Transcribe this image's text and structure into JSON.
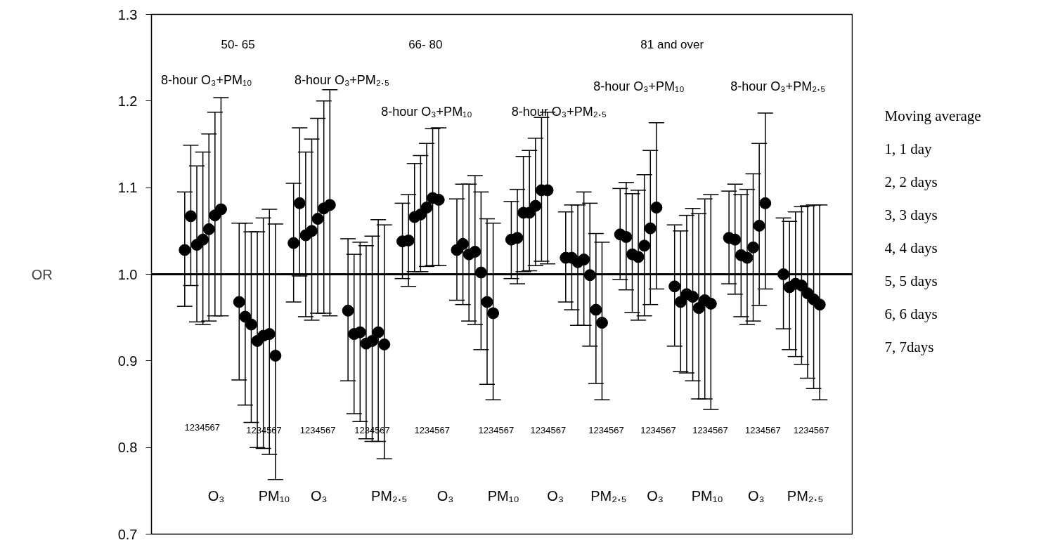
{
  "chart_data": {
    "type": "scatter",
    "ylabel": "OR",
    "marker": "circle",
    "grid": false,
    "tick_labels": "y",
    "categories": [
      null,
      null,
      null,
      null,
      null,
      null,
      null,
      null,
      null,
      null,
      null,
      null,
      null,
      null,
      null,
      null,
      null,
      null,
      null,
      null,
      null,
      null,
      null,
      null,
      null,
      null,
      null,
      null,
      null,
      null,
      null,
      null,
      null,
      null,
      null,
      null,
      null,
      null,
      null,
      null,
      null,
      null,
      null,
      null,
      null,
      null,
      null,
      null,
      null,
      null,
      null,
      null,
      null,
      null,
      null,
      null,
      null,
      null,
      null,
      null,
      null,
      null,
      null,
      null,
      null,
      null,
      null,
      null,
      null,
      null,
      null,
      null,
      null,
      null,
      null,
      null,
      null,
      null,
      null,
      null,
      null,
      null,
      null,
      null,
      null,
      null,
      null,
      null,
      null,
      null,
      null,
      null,
      null,
      null,
      null,
      null,
      null,
      null,
      null,
      null,
      null,
      null,
      null,
      null,
      null,
      null,
      null,
      null,
      null,
      null,
      null,
      null,
      null,
      null,
      null,
      null
    ],
    "ylim": [
      0.7,
      1.3
    ],
    "yticks": [
      {
        "value": 0.7,
        "label": "0.7"
      },
      {
        "value": 0.8,
        "label": "0.8"
      },
      {
        "value": 0.9,
        "label": "0.9"
      },
      {
        "value": 1.0,
        "label": "1.0"
      },
      {
        "value": 1.1,
        "label": "1.1"
      },
      {
        "value": 1.2,
        "label": "1.2"
      },
      {
        "value": 1.3,
        "label": "1.3"
      }
    ],
    "ref_lines": [
      {
        "axis": "y",
        "value": 1.0,
        "color": "#000000"
      }
    ],
    "series": [
      {
        "color": "#000000",
        "values": [
          null,
          null,
          null,
          null,
          null,
          1.028,
          1.067,
          1.034,
          1.04,
          1.052,
          1.068,
          1.075,
          null,
          null,
          0.968,
          0.951,
          0.942,
          0.923,
          0.929,
          0.931,
          0.906,
          null,
          null,
          1.036,
          1.082,
          1.045,
          1.05,
          1.064,
          1.076,
          1.08,
          null,
          null,
          0.958,
          0.931,
          0.933,
          0.92,
          0.923,
          0.933,
          0.919,
          null,
          null,
          1.038,
          1.039,
          1.066,
          1.069,
          1.077,
          1.088,
          1.086,
          null,
          null,
          1.028,
          1.035,
          1.023,
          1.026,
          1.002,
          0.968,
          0.955,
          null,
          null,
          1.04,
          1.042,
          1.071,
          1.071,
          1.079,
          1.097,
          1.097,
          null,
          null,
          1.019,
          1.019,
          1.014,
          1.017,
          0.999,
          0.959,
          0.944,
          null,
          null,
          1.046,
          1.043,
          1.023,
          1.02,
          1.033,
          1.053,
          1.077,
          null,
          null,
          0.986,
          0.968,
          0.977,
          0.974,
          0.961,
          0.97,
          0.966,
          null,
          null,
          1.042,
          1.04,
          1.022,
          1.019,
          1.031,
          1.056,
          1.082,
          null,
          null,
          1.0,
          0.985,
          0.989,
          0.987,
          0.978,
          0.971,
          0.965,
          null,
          null,
          null,
          null,
          null
        ],
        "errors": [
          null,
          null,
          null,
          null,
          null,
          [
            0.963,
            1.095
          ],
          [
            0.987,
            1.149
          ],
          [
            0.945,
            1.125
          ],
          [
            0.942,
            1.141
          ],
          [
            0.946,
            1.162
          ],
          [
            0.952,
            1.187
          ],
          [
            0.952,
            1.204
          ],
          null,
          null,
          [
            0.878,
            1.059
          ],
          [
            0.849,
            1.059
          ],
          [
            0.829,
            1.049
          ],
          [
            0.8,
            1.049
          ],
          [
            0.799,
            1.065
          ],
          [
            0.792,
            1.075
          ],
          [
            0.763,
            1.058
          ],
          null,
          null,
          [
            0.968,
            1.105
          ],
          [
            0.998,
            1.169
          ],
          [
            0.951,
            1.141
          ],
          [
            0.947,
            1.156
          ],
          [
            0.955,
            1.18
          ],
          [
            0.955,
            1.2
          ],
          [
            0.952,
            1.213
          ],
          null,
          null,
          [
            0.877,
            1.041
          ],
          [
            0.839,
            1.023
          ],
          [
            0.83,
            1.037
          ],
          [
            0.81,
            1.033
          ],
          [
            0.807,
            1.044
          ],
          [
            0.807,
            1.063
          ],
          [
            0.787,
            1.057
          ],
          null,
          null,
          [
            0.995,
            1.082
          ],
          [
            0.986,
            1.092
          ],
          [
            1.003,
            1.128
          ],
          [
            1.003,
            1.137
          ],
          [
            1.009,
            1.151
          ],
          [
            1.01,
            1.168
          ],
          [
            1.01,
            1.169
          ],
          null,
          null,
          [
            0.97,
            1.087
          ],
          [
            0.965,
            1.104
          ],
          [
            0.946,
            1.104
          ],
          [
            0.942,
            1.114
          ],
          [
            0.913,
            1.095
          ],
          [
            0.873,
            1.064
          ],
          [
            0.855,
            1.059
          ],
          null,
          null,
          [
            0.995,
            1.084
          ],
          [
            0.989,
            1.098
          ],
          [
            1.003,
            1.136
          ],
          [
            1.004,
            1.143
          ],
          [
            1.01,
            1.157
          ],
          [
            1.015,
            1.181
          ],
          [
            1.012,
            1.187
          ],
          null,
          null,
          [
            0.968,
            1.072
          ],
          [
            0.959,
            1.08
          ],
          [
            0.941,
            1.08
          ],
          [
            0.941,
            1.095
          ],
          [
            0.917,
            1.082
          ],
          [
            0.874,
            1.047
          ],
          [
            0.855,
            1.037
          ],
          null,
          null,
          [
            0.994,
            1.099
          ],
          [
            0.982,
            1.106
          ],
          [
            0.956,
            1.093
          ],
          [
            0.947,
            1.097
          ],
          [
            0.952,
            1.115
          ],
          [
            0.965,
            1.143
          ],
          [
            0.983,
            1.175
          ],
          null,
          null,
          [
            0.917,
            1.057
          ],
          [
            0.888,
            1.05
          ],
          [
            0.886,
            1.068
          ],
          [
            0.877,
            1.076
          ],
          [
            0.856,
            1.07
          ],
          [
            0.856,
            1.087
          ],
          [
            0.844,
            1.092
          ],
          null,
          null,
          [
            0.989,
            1.096
          ],
          [
            0.977,
            1.104
          ],
          [
            0.951,
            1.092
          ],
          [
            0.942,
            1.098
          ],
          [
            0.946,
            1.116
          ],
          [
            0.964,
            1.151
          ],
          [
            0.983,
            1.186
          ],
          null,
          null,
          [
            0.937,
            1.065
          ],
          [
            0.913,
            1.061
          ],
          [
            0.905,
            1.072
          ],
          [
            0.896,
            1.078
          ],
          [
            0.88,
            1.079
          ],
          [
            0.868,
            1.08
          ],
          [
            0.855,
            1.08
          ],
          null,
          null,
          null,
          null,
          null
        ]
      }
    ],
    "annotations": [
      "50- 65",
      "66- 80",
      "81 and over",
      "8-hour O₃+PM₁₀",
      "8-hour O₃+PM₂.₅",
      "8-hour O₃+PM₁₀",
      "8-hour O₃+PM₂.₅",
      "8-hour O₃+PM₁₀",
      "8-hour O₃+PM₂.₅",
      "1234567",
      "1234567",
      "1234567",
      "1234567",
      "1234567",
      "1234567",
      "1234567",
      "1234567",
      "1234567",
      "1234567",
      "1234567",
      "1234567",
      "O₃",
      "PM₁₀",
      "O₃",
      "PM₂.₅",
      "O₃",
      "PM₁₀",
      "O₃",
      "PM₂.₅",
      "O₃",
      "PM₁₀",
      "O₃",
      "PM₂.₅",
      "Moving average",
      "1, 1 day",
      "2, 2 days",
      "3, 3 days",
      "4, 4 days",
      "5, 5 days",
      "6, 6 days",
      "7, 7days"
    ]
  }
}
